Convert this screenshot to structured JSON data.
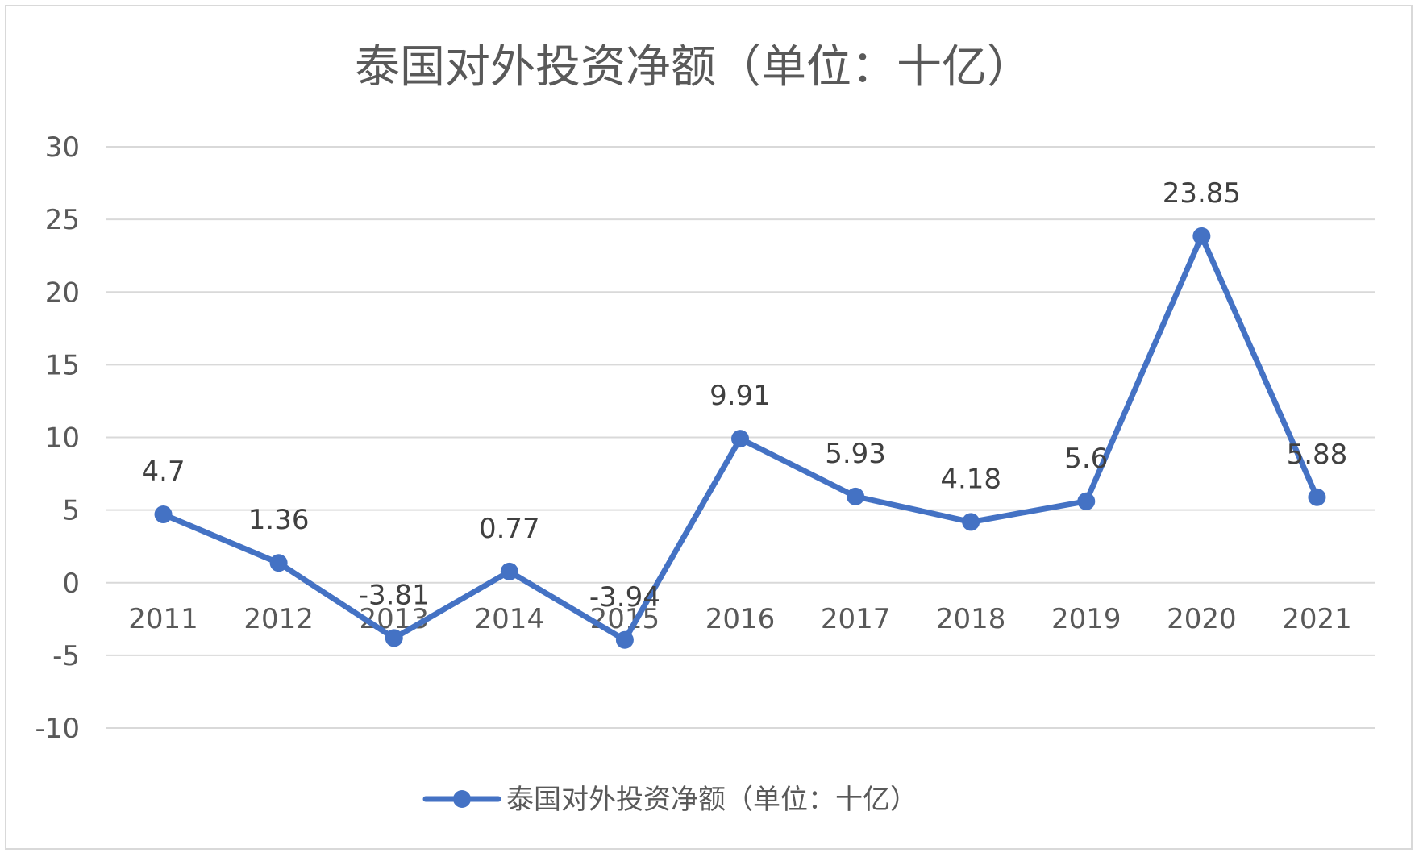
{
  "chart_data": {
    "type": "line",
    "title": "泰国对外投资净额（单位：十亿）",
    "categories": [
      "2011",
      "2012",
      "2013",
      "2014",
      "2015",
      "2016",
      "2017",
      "2018",
      "2019",
      "2020",
      "2021"
    ],
    "series": [
      {
        "name": "泰国对外投资净额（单位：十亿）",
        "values": [
          4.7,
          1.36,
          -3.81,
          0.77,
          -3.94,
          9.91,
          5.93,
          4.18,
          5.6,
          23.85,
          5.88
        ],
        "labels": [
          "4.7",
          "1.36",
          "-3.81",
          "0.77",
          "-3.94",
          "9.91",
          "5.93",
          "4.18",
          "5.6",
          "23.85",
          "5.88"
        ],
        "color": "#4472c4"
      }
    ],
    "yticks": [
      "30",
      "25",
      "20",
      "15",
      "10",
      "5",
      "0",
      "-5",
      "-10"
    ],
    "ylim": [
      -10,
      30
    ],
    "grid": true,
    "legend_position": "bottom",
    "gridline_color": "#d9d9d9",
    "text_color": "#595959"
  }
}
